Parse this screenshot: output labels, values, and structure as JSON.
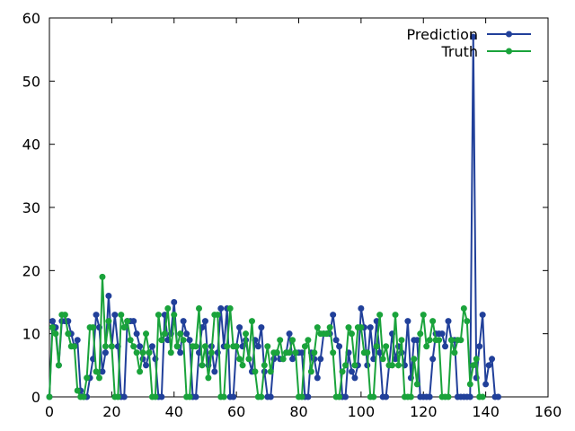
{
  "chart_data": {
    "type": "line",
    "title": "",
    "xlabel": "",
    "ylabel": "",
    "xlim": [
      0,
      160
    ],
    "ylim": [
      0,
      60
    ],
    "xticks": [
      "0",
      "20",
      "40",
      "60",
      "80",
      "100",
      "120",
      "140",
      "160"
    ],
    "yticks": [
      "0",
      "10",
      "20",
      "30",
      "40",
      "50",
      "60"
    ],
    "grid": false,
    "legend_position": "top-right",
    "series": [
      {
        "name": "Prediction",
        "color": "#21409a",
        "marker": "circle",
        "values": [
          0,
          12,
          11,
          5,
          12,
          12,
          12,
          10,
          8,
          9,
          1,
          0,
          0,
          3,
          6,
          13,
          11,
          4,
          7,
          16,
          8,
          13,
          8,
          0,
          0,
          12,
          12,
          12,
          10,
          8,
          6,
          5,
          7,
          8,
          6,
          0,
          0,
          13,
          9,
          10,
          15,
          8,
          7,
          12,
          10,
          9,
          0,
          0,
          7,
          11,
          12,
          5,
          8,
          4,
          7,
          14,
          8,
          14,
          0,
          0,
          8,
          11,
          8,
          9,
          6,
          4,
          9,
          8,
          11,
          4,
          0,
          0,
          6,
          7,
          6,
          6,
          7,
          10,
          6,
          7,
          7,
          7,
          0,
          0,
          7,
          6,
          3,
          6,
          10,
          10,
          10,
          13,
          9,
          8,
          0,
          0,
          7,
          4,
          3,
          5,
          14,
          11,
          5,
          11,
          6,
          12,
          7,
          0,
          0,
          5,
          10,
          6,
          8,
          7,
          5,
          12,
          3,
          9,
          9,
          0,
          0,
          0,
          0,
          6,
          10,
          10,
          10,
          8,
          12,
          9,
          9,
          0,
          0,
          0,
          0,
          0,
          57,
          3,
          8,
          13,
          2,
          5,
          6,
          0,
          0
        ]
      },
      {
        "name": "Truth",
        "color": "#1aa33b",
        "marker": "circle",
        "values": [
          0,
          11,
          10,
          5,
          13,
          13,
          10,
          8,
          8,
          1,
          0,
          0,
          3,
          11,
          11,
          4,
          3,
          19,
          8,
          12,
          8,
          0,
          0,
          13,
          11,
          12,
          9,
          8,
          7,
          4,
          7,
          10,
          7,
          0,
          0,
          13,
          9,
          10,
          14,
          7,
          13,
          8,
          10,
          9,
          0,
          0,
          8,
          8,
          14,
          5,
          8,
          3,
          7,
          13,
          13,
          0,
          0,
          8,
          14,
          8,
          8,
          6,
          5,
          10,
          6,
          12,
          4,
          0,
          0,
          5,
          8,
          4,
          7,
          7,
          9,
          6,
          7,
          7,
          9,
          7,
          0,
          0,
          8,
          9,
          4,
          7,
          11,
          10,
          10,
          10,
          11,
          7,
          0,
          0,
          4,
          5,
          11,
          10,
          5,
          11,
          11,
          7,
          7,
          0,
          0,
          8,
          13,
          6,
          8,
          5,
          5,
          13,
          5,
          9,
          0,
          0,
          0,
          6,
          2,
          10,
          13,
          8,
          9,
          12,
          9,
          9,
          0,
          0,
          0,
          9,
          7,
          9,
          9,
          14,
          12,
          2,
          5,
          6,
          0,
          0
        ]
      }
    ]
  }
}
